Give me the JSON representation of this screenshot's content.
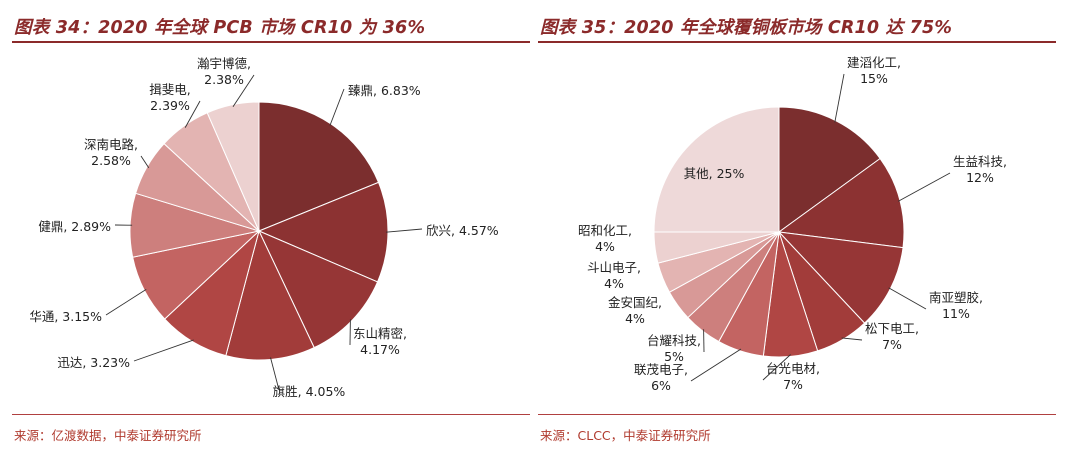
{
  "colors": {
    "title": "#8b2a2a",
    "rule": "#8b2a2a",
    "source": "#b03a2e"
  },
  "charts": {
    "left": {
      "title": "图表 34：2020 年全球 PCB 市场 CR10 为 36%",
      "source": "来源：亿渡数据，中泰证券研究所"
    },
    "right": {
      "title": "图表 35：2020 年全球覆铜板市场 CR10 达 75%",
      "source": "来源：CLCC，中泰证券研究所"
    }
  },
  "chart_data": [
    {
      "type": "pie",
      "title": "图表 34：2020 年全球 PCB 市场 CR10 为 36%",
      "units": "%",
      "slices": [
        {
          "label": "臻鼎",
          "value": 6.83,
          "display": "臻鼎, 6.83%",
          "color": "#7b2e2e"
        },
        {
          "label": "欣兴",
          "value": 4.57,
          "display": "欣兴, 4.57%",
          "color": "#8c3232"
        },
        {
          "label": "东山精密",
          "value": 4.17,
          "display": "东山精密,|4.17%",
          "color": "#963636"
        },
        {
          "label": "旗胜",
          "value": 4.05,
          "display": "旗胜, 4.05%",
          "color": "#a23c3a"
        },
        {
          "label": "迅达",
          "value": 3.23,
          "display": "迅达, 3.23%",
          "color": "#b04644"
        },
        {
          "label": "华通",
          "value": 3.15,
          "display": "华通, 3.15%",
          "color": "#c36462"
        },
        {
          "label": "健鼎",
          "value": 2.89,
          "display": "健鼎, 2.89%",
          "color": "#cd7f7d"
        },
        {
          "label": "深南电路",
          "value": 2.58,
          "display": "深南电路,|2.58%",
          "color": "#d89997"
        },
        {
          "label": "揖斐电",
          "value": 2.39,
          "display": "揖斐电,|2.39%",
          "color": "#e3b4b2"
        },
        {
          "label": "瀚宇博德",
          "value": 2.38,
          "display": "瀚宇博德,|2.38%",
          "color": "#ecd1d0"
        }
      ]
    },
    {
      "type": "pie",
      "title": "图表 35：2020 年全球覆铜板市场 CR10 达 75%",
      "units": "%",
      "slices": [
        {
          "label": "建滔化工",
          "value": 15,
          "display": "建滔化工,|15%",
          "color": "#7b2e2e"
        },
        {
          "label": "生益科技",
          "value": 12,
          "display": "生益科技,|12%",
          "color": "#8c3232"
        },
        {
          "label": "南亚塑胶",
          "value": 11,
          "display": "南亚塑胶,|11%",
          "color": "#963636"
        },
        {
          "label": "松下电工",
          "value": 7,
          "display": "松下电工,|7%",
          "color": "#a23c3a"
        },
        {
          "label": "台光电材",
          "value": 7,
          "display": "台光电材,|7%",
          "color": "#b04644"
        },
        {
          "label": "联茂电子",
          "value": 6,
          "display": "联茂电子,|6%",
          "color": "#c36462"
        },
        {
          "label": "台耀科技",
          "value": 5,
          "display": "台耀科技,|5%",
          "color": "#cd7f7d"
        },
        {
          "label": "金安国纪",
          "value": 4,
          "display": "金安国纪,|4%",
          "color": "#d89997"
        },
        {
          "label": "斗山电子",
          "value": 4,
          "display": "斗山电子,|4%",
          "color": "#e3b4b2"
        },
        {
          "label": "昭和化工",
          "value": 4,
          "display": "昭和化工,|4%",
          "color": "#ecd1d0"
        },
        {
          "label": "其他",
          "value": 25,
          "display": "其他, 25%",
          "color": "#eed9d9"
        }
      ]
    }
  ]
}
